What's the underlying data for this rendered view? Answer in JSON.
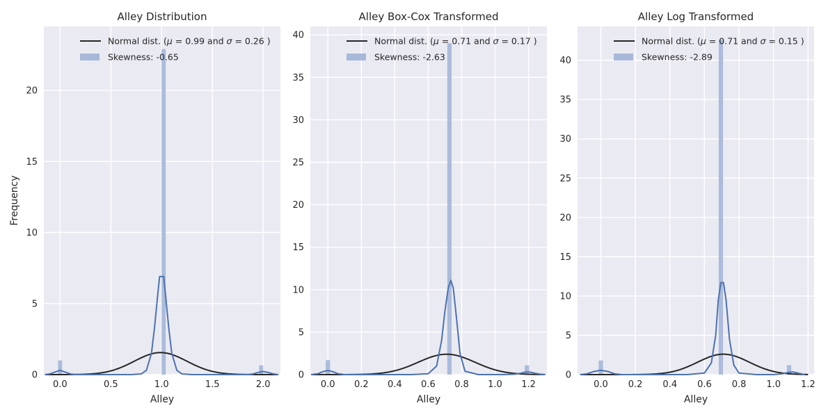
{
  "figure": {
    "background": "#ffffff",
    "panel_color": "#eaeaf2",
    "grid_color": "#ffffff",
    "bar_color": "#a8b8d9",
    "kde_color": "#4c72b0",
    "normal_color": "#262626"
  },
  "chart_data": [
    {
      "type": "bar",
      "title": "Alley Distribution",
      "xlabel": "Alley",
      "ylabel": "Frequency",
      "xlim": [
        -0.16,
        2.17
      ],
      "ylim": [
        0,
        24.5
      ],
      "xticks": [
        0.0,
        0.5,
        1.0,
        1.5,
        2.0
      ],
      "xtick_labels": [
        "0.0",
        "0.5",
        "1.0",
        "1.5",
        "2.0"
      ],
      "yticks": [
        0,
        5,
        10,
        15,
        20
      ],
      "ytick_labels": [
        "0",
        "5",
        "10",
        "15",
        "20"
      ],
      "grid": true,
      "legend_position": "top-right",
      "legend": {
        "line_label_parts": [
          "Normal dist. (",
          "μ",
          " =  0.99 and ",
          "σ",
          " =  0.26 )"
        ],
        "bar_label": "Skewness: -0.65"
      },
      "histogram": {
        "bin_width": 0.04,
        "bins": [
          {
            "x": 0.0,
            "height": 1.0
          },
          {
            "x": 1.02,
            "height": 22.9
          },
          {
            "x": 1.98,
            "height": 0.65
          }
        ]
      },
      "kde": {
        "x": [
          -0.15,
          -0.1,
          -0.05,
          0.0,
          0.05,
          0.1,
          0.15,
          0.3,
          0.5,
          0.7,
          0.8,
          0.85,
          0.9,
          0.93,
          0.96,
          0.98,
          1.0,
          1.02,
          1.04,
          1.07,
          1.1,
          1.15,
          1.2,
          1.3,
          1.5,
          1.7,
          1.85,
          1.9,
          1.95,
          2.0,
          2.05,
          2.1,
          2.15
        ],
        "y": [
          0.0,
          0.05,
          0.18,
          0.3,
          0.18,
          0.05,
          0.0,
          0.0,
          0.0,
          0.0,
          0.05,
          0.3,
          1.5,
          3.3,
          5.5,
          6.9,
          6.9,
          6.9,
          5.5,
          3.3,
          1.5,
          0.3,
          0.05,
          0.0,
          0.0,
          0.0,
          0.0,
          0.05,
          0.15,
          0.22,
          0.15,
          0.05,
          0.0
        ]
      },
      "normal": {
        "mu": 0.99,
        "sigma": 0.26,
        "peak": 1.55,
        "range": [
          -0.15,
          2.15
        ]
      }
    },
    {
      "type": "bar",
      "title": "Alley Box-Cox Transformed",
      "xlabel": "Alley",
      "ylabel": "",
      "xlim": [
        -0.105,
        1.31
      ],
      "ylim": [
        0,
        41
      ],
      "xticks": [
        0.0,
        0.2,
        0.4,
        0.6,
        0.8,
        1.0,
        1.2
      ],
      "xtick_labels": [
        "0.0",
        "0.2",
        "0.4",
        "0.6",
        "0.8",
        "1.0",
        "1.2"
      ],
      "yticks": [
        0,
        5,
        10,
        15,
        20,
        25,
        30,
        35,
        40
      ],
      "ytick_labels": [
        "0",
        "5",
        "10",
        "15",
        "20",
        "25",
        "30",
        "35",
        "40"
      ],
      "grid": true,
      "legend_position": "top-right",
      "legend": {
        "line_label_parts": [
          "Normal dist. (",
          "μ",
          " =  0.71 and ",
          "σ",
          " =  0.17 )"
        ],
        "bar_label": "Skewness: -2.63"
      },
      "histogram": {
        "bin_width": 0.026,
        "bins": [
          {
            "x": 0.0,
            "height": 1.7
          },
          {
            "x": 0.727,
            "height": 39.0
          },
          {
            "x": 1.19,
            "height": 1.1
          }
        ]
      },
      "kde": {
        "x": [
          -0.1,
          -0.06,
          -0.03,
          0.0,
          0.03,
          0.06,
          0.1,
          0.3,
          0.5,
          0.6,
          0.65,
          0.68,
          0.7,
          0.72,
          0.735,
          0.75,
          0.77,
          0.79,
          0.82,
          0.9,
          1.05,
          1.12,
          1.15,
          1.18,
          1.21,
          1.24,
          1.27,
          1.3
        ],
        "y": [
          0.0,
          0.1,
          0.35,
          0.48,
          0.35,
          0.1,
          0.0,
          0.0,
          0.0,
          0.1,
          1.0,
          4.0,
          7.5,
          10.2,
          11.1,
          10.2,
          6.5,
          2.5,
          0.4,
          0.0,
          0.0,
          0.05,
          0.15,
          0.3,
          0.3,
          0.15,
          0.05,
          0.0
        ]
      },
      "normal": {
        "mu": 0.71,
        "sigma": 0.17,
        "peak": 2.4,
        "range": [
          -0.1,
          1.3
        ]
      }
    },
    {
      "type": "bar",
      "title": "Alley Log Transformed",
      "xlabel": "Alley",
      "ylabel": "",
      "xlim": [
        -0.135,
        1.235
      ],
      "ylim": [
        0,
        44.3
      ],
      "xticks": [
        0.0,
        0.2,
        0.4,
        0.6,
        0.8,
        1.0,
        1.2
      ],
      "xtick_labels": [
        "0.0",
        "0.2",
        "0.4",
        "0.6",
        "0.8",
        "1.0",
        "1.2"
      ],
      "yticks": [
        0,
        5,
        10,
        15,
        20,
        25,
        30,
        35,
        40
      ],
      "ytick_labels": [
        "0",
        "5",
        "10",
        "15",
        "20",
        "25",
        "30",
        "35",
        "40"
      ],
      "grid": true,
      "legend_position": "top-right",
      "legend": {
        "line_label_parts": [
          "Normal dist. (",
          "μ",
          " =  0.71 and ",
          "σ",
          " =  0.15 )"
        ],
        "bar_label": "Skewness: -2.89"
      },
      "histogram": {
        "bin_width": 0.025,
        "bins": [
          {
            "x": 0.0,
            "height": 1.8
          },
          {
            "x": 0.695,
            "height": 42.6
          },
          {
            "x": 1.09,
            "height": 1.2
          }
        ]
      },
      "kde": {
        "x": [
          -0.12,
          -0.08,
          -0.04,
          0.0,
          0.04,
          0.08,
          0.12,
          0.3,
          0.5,
          0.6,
          0.64,
          0.665,
          0.68,
          0.695,
          0.71,
          0.725,
          0.745,
          0.77,
          0.8,
          0.9,
          1.0,
          1.05,
          1.08,
          1.11,
          1.14,
          1.18
        ],
        "y": [
          0.0,
          0.1,
          0.4,
          0.55,
          0.4,
          0.1,
          0.0,
          0.0,
          0.0,
          0.2,
          1.5,
          5.0,
          9.5,
          11.7,
          11.7,
          9.5,
          4.5,
          1.2,
          0.2,
          0.0,
          0.0,
          0.1,
          0.25,
          0.35,
          0.2,
          0.0
        ]
      },
      "normal": {
        "mu": 0.71,
        "sigma": 0.15,
        "peak": 2.6,
        "range": [
          -0.12,
          1.2
        ]
      }
    }
  ]
}
